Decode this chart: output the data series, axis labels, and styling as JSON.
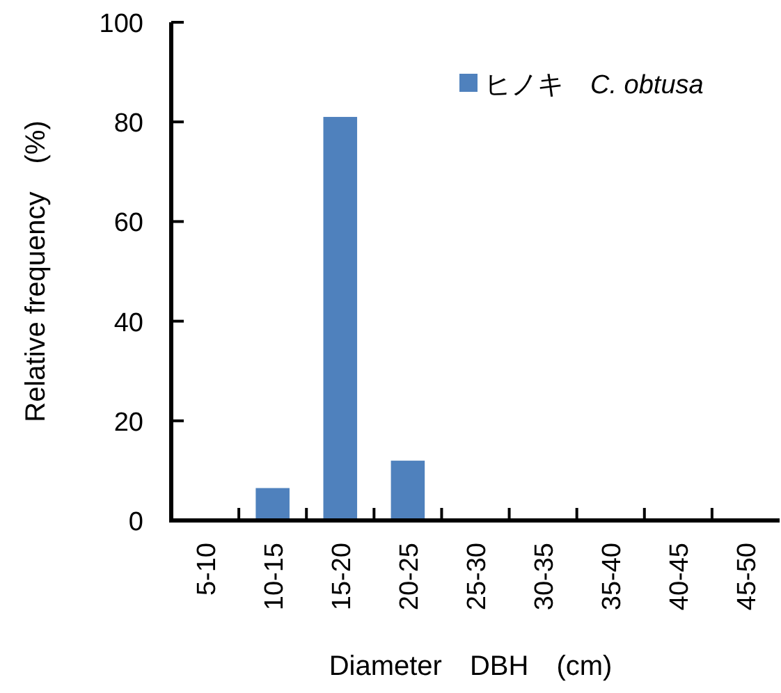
{
  "chart_data": {
    "type": "bar",
    "categories": [
      "5-10",
      "10-15",
      "15-20",
      "20-25",
      "25-30",
      "30-35",
      "35-40",
      "40-45",
      "45-50"
    ],
    "series": [
      {
        "name": "ヒノキ　*C. obtusa*",
        "color": "#4f81bd",
        "values": [
          0,
          6.5,
          81,
          12,
          0,
          0,
          0,
          0,
          0
        ]
      }
    ],
    "xlabel": "Diameter　DBH　(cm)",
    "ylabel": "Relative frequency　(%)",
    "ylim": [
      0,
      100
    ],
    "yticks": [
      0,
      20,
      40,
      60,
      80,
      100
    ],
    "grid": false,
    "legend": "top right"
  }
}
